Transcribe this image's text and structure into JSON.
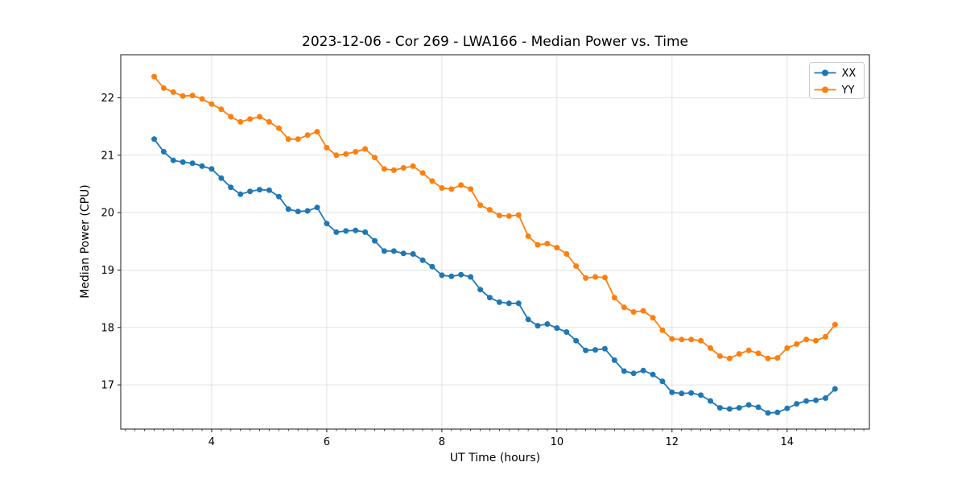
{
  "figure": {
    "title": "2023-12-06 - Cor 269 - LWA166 - Median Power vs. Time"
  },
  "chart_data": {
    "type": "line",
    "title": "2023-12-06 - Cor 269 - LWA166 - Median Power vs. Time",
    "xlabel": "UT Time (hours)",
    "ylabel": "Median Power (CPU)",
    "xlim": [
      2.42,
      15.43
    ],
    "ylim": [
      16.23,
      22.75
    ],
    "xticks": [
      4,
      6,
      8,
      10,
      12,
      14
    ],
    "yticks": [
      17,
      18,
      19,
      20,
      21,
      22
    ],
    "x_minor_tick_step": 0.16667,
    "grid": true,
    "legend": {
      "position": "upper right",
      "entries": [
        "XX",
        "YY"
      ]
    },
    "x": [
      3.0,
      3.167,
      3.333,
      3.5,
      3.667,
      3.833,
      4.0,
      4.167,
      4.333,
      4.5,
      4.667,
      4.833,
      5.0,
      5.167,
      5.333,
      5.5,
      5.667,
      5.833,
      6.0,
      6.167,
      6.333,
      6.5,
      6.667,
      6.833,
      7.0,
      7.167,
      7.333,
      7.5,
      7.667,
      7.833,
      8.0,
      8.167,
      8.333,
      8.5,
      8.667,
      8.833,
      9.0,
      9.167,
      9.333,
      9.5,
      9.667,
      9.833,
      10.0,
      10.167,
      10.333,
      10.5,
      10.667,
      10.833,
      11.0,
      11.167,
      11.333,
      11.5,
      11.667,
      11.833,
      12.0,
      12.167,
      12.333,
      12.5,
      12.667,
      12.833,
      13.0,
      13.167,
      13.333,
      13.5,
      13.667,
      13.833,
      14.0,
      14.167,
      14.333,
      14.5,
      14.667,
      14.833
    ],
    "series": [
      {
        "name": "XX",
        "color": "#1f77b4",
        "marker": "circle",
        "values": [
          21.28,
          21.06,
          20.91,
          20.88,
          20.86,
          20.81,
          20.76,
          20.6,
          20.44,
          20.32,
          20.37,
          20.4,
          20.39,
          20.28,
          20.06,
          20.02,
          20.03,
          20.09,
          19.81,
          19.66,
          19.68,
          19.69,
          19.66,
          19.51,
          19.33,
          19.33,
          19.29,
          19.28,
          19.17,
          19.06,
          18.91,
          18.89,
          18.92,
          18.88,
          18.66,
          18.52,
          18.44,
          18.42,
          18.42,
          18.14,
          18.03,
          18.06,
          17.99,
          17.92,
          17.77,
          17.6,
          17.61,
          17.63,
          17.43,
          17.24,
          17.2,
          17.25,
          17.18,
          17.06,
          16.87,
          16.85,
          16.86,
          16.82,
          16.72,
          16.6,
          16.58,
          16.6,
          16.65,
          16.61,
          16.51,
          16.52,
          16.59,
          16.67,
          16.72,
          16.73,
          16.77,
          16.93
        ]
      },
      {
        "name": "YY",
        "color": "#ff7f0e",
        "marker": "circle",
        "values": [
          22.37,
          22.17,
          22.1,
          22.03,
          22.04,
          21.98,
          21.89,
          21.8,
          21.67,
          21.58,
          21.63,
          21.67,
          21.58,
          21.47,
          21.28,
          21.28,
          21.35,
          21.41,
          21.13,
          21.0,
          21.02,
          21.06,
          21.11,
          20.96,
          20.76,
          20.74,
          20.78,
          20.81,
          20.69,
          20.55,
          20.43,
          20.41,
          20.48,
          20.41,
          20.13,
          20.05,
          19.95,
          19.94,
          19.96,
          19.59,
          19.44,
          19.46,
          19.39,
          19.28,
          19.07,
          18.86,
          18.88,
          18.87,
          18.52,
          18.35,
          18.27,
          18.29,
          18.17,
          17.95,
          17.8,
          17.79,
          17.79,
          17.77,
          17.64,
          17.5,
          17.46,
          17.54,
          17.6,
          17.55,
          17.46,
          17.47,
          17.64,
          17.71,
          17.79,
          17.77,
          17.84,
          18.05
        ]
      }
    ],
    "colors": {
      "series_xx": "#1f77b4",
      "series_yy": "#ff7f0e",
      "grid": "#b0b0b0",
      "spine": "#1a1a1a",
      "text": "#000000",
      "legend_border": "#cccccc",
      "background": "#ffffff"
    }
  }
}
